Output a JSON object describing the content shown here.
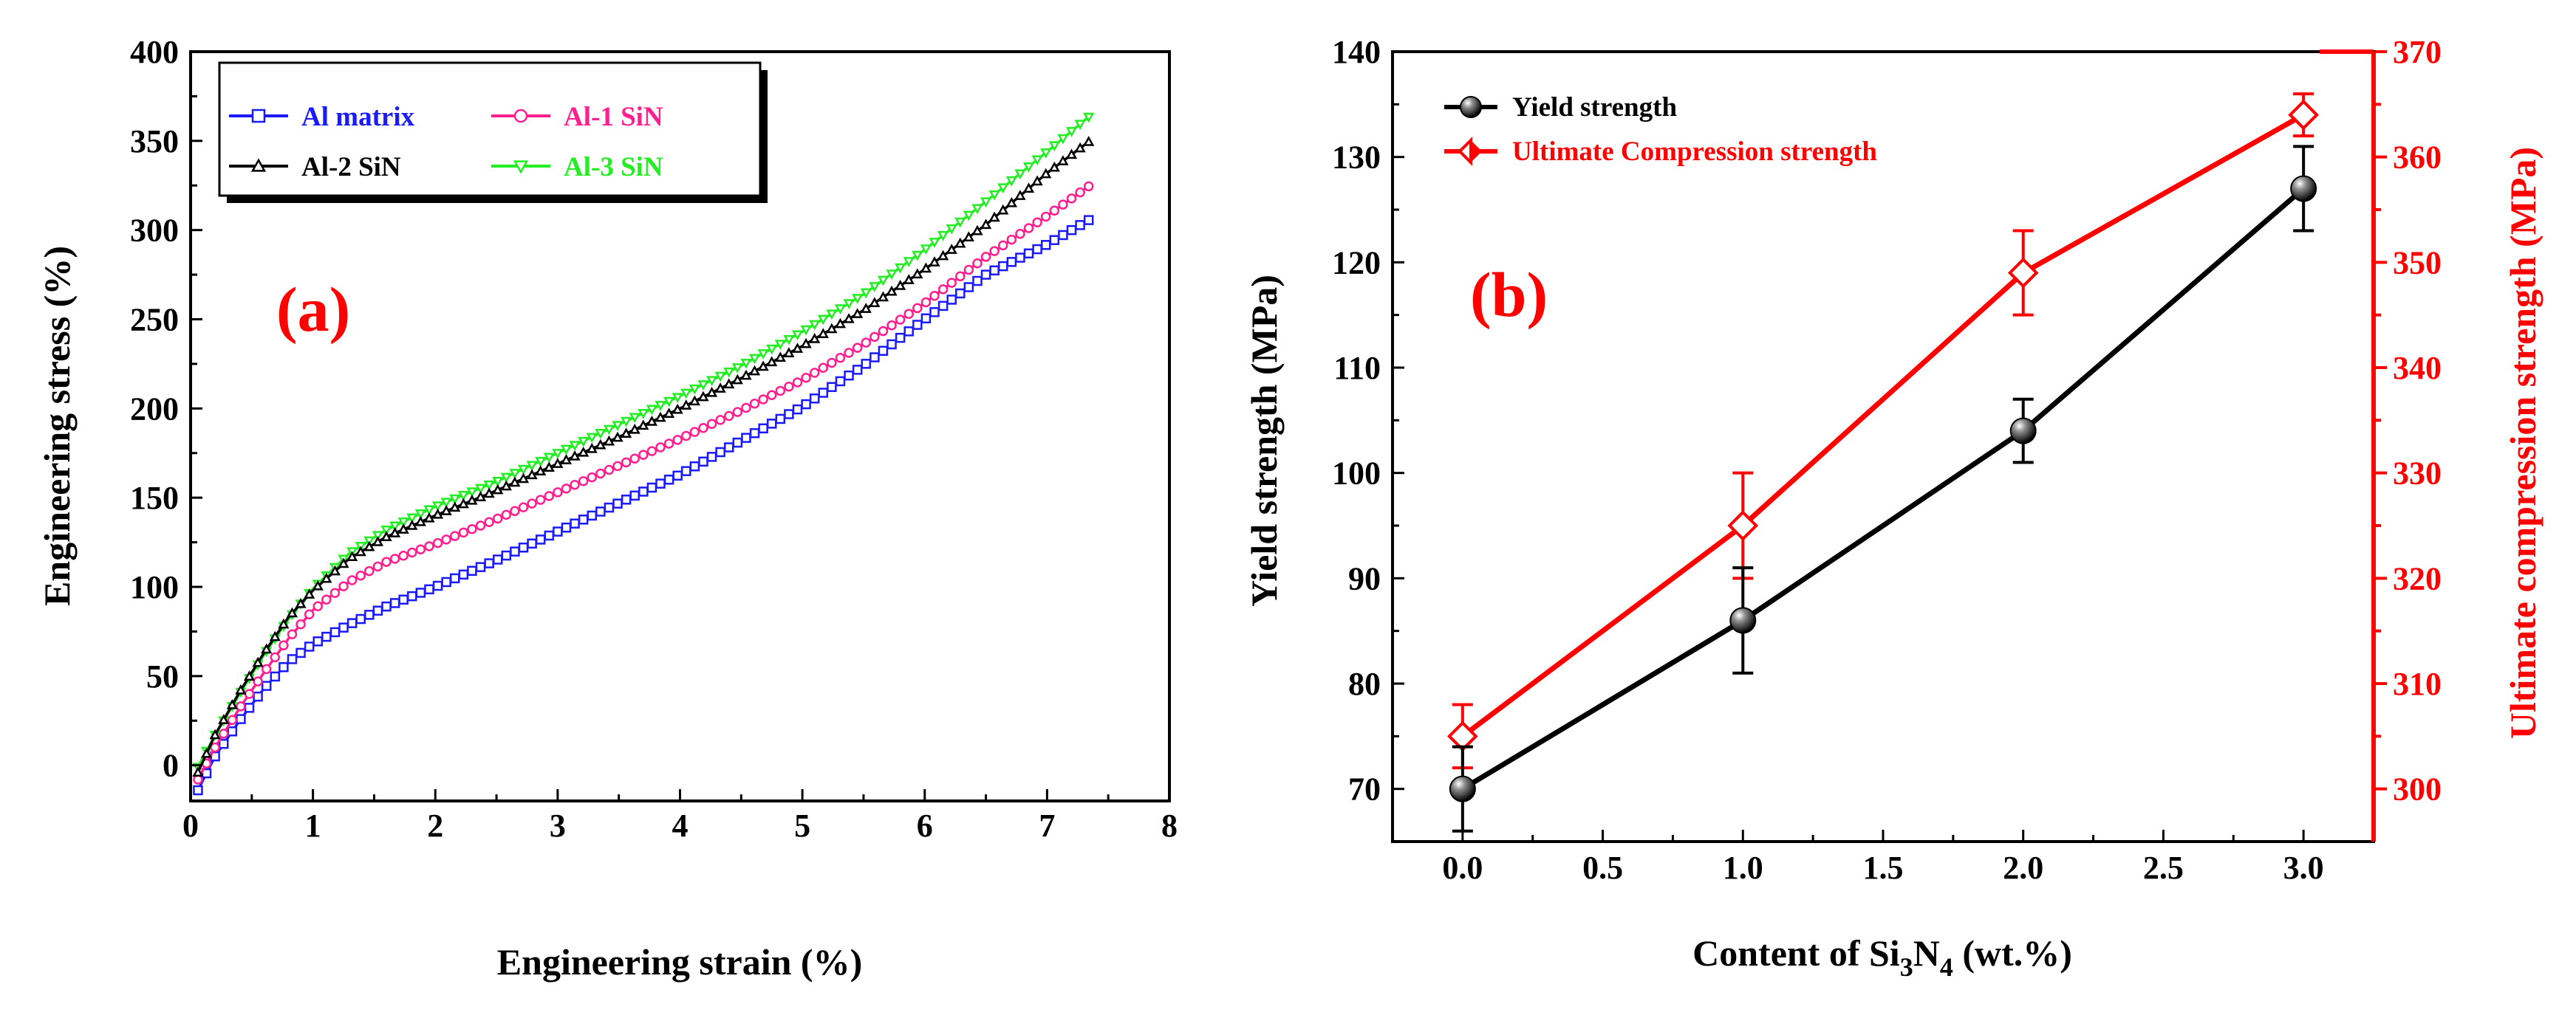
{
  "chart_data": [
    {
      "type": "line",
      "panel_label": "(a)",
      "xlabel": "Engineering strain (%)",
      "ylabel": "Engineering stress (%)",
      "xlim": [
        0,
        8
      ],
      "ylim": [
        -20,
        400
      ],
      "xticks": [
        "0",
        "1",
        "2",
        "3",
        "4",
        "5",
        "6",
        "7",
        "8"
      ],
      "yticks": [
        "0",
        "50",
        "100",
        "150",
        "200",
        "250",
        "300",
        "350",
        "400"
      ],
      "legend_position": "top-left",
      "series": [
        {
          "name": "Al matrix",
          "color": "#1a1aff",
          "marker": "square",
          "x": [
            0.06,
            0.2,
            0.4,
            0.6,
            0.8,
            1.0,
            1.3,
            1.6,
            2.0,
            2.5,
            3.0,
            3.5,
            4.0,
            4.5,
            5.0,
            5.5,
            6.0,
            6.5,
            7.0,
            7.35
          ],
          "y": [
            -14,
            5,
            25,
            43,
            58,
            68,
            79,
            89,
            100,
            115,
            131,
            147,
            163,
            182,
            201,
            224,
            250,
            275,
            292,
            306
          ]
        },
        {
          "name": "Al-1 SiN",
          "color": "#ff1f8f",
          "marker": "circle",
          "x": [
            0.06,
            0.2,
            0.4,
            0.6,
            0.8,
            1.0,
            1.3,
            1.6,
            2.0,
            2.5,
            3.0,
            3.5,
            4.0,
            4.5,
            5.0,
            5.5,
            6.0,
            6.5,
            7.0,
            7.35
          ],
          "y": [
            -8,
            10,
            32,
            52,
            71,
            87,
            103,
            114,
            124,
            138,
            153,
            168,
            183,
            199,
            216,
            236,
            259,
            285,
            308,
            325
          ]
        },
        {
          "name": "Al-2 SiN",
          "color": "#000000",
          "marker": "triangle-up",
          "x": [
            0.06,
            0.2,
            0.4,
            0.6,
            0.8,
            1.0,
            1.3,
            1.6,
            2.0,
            2.5,
            3.0,
            3.5,
            4.0,
            4.5,
            5.0,
            5.5,
            6.0,
            6.5,
            7.0,
            7.35
          ],
          "y": [
            -4,
            17,
            41,
            63,
            83,
            98,
            116,
            128,
            140,
            154,
            169,
            184,
            200,
            217,
            235,
            255,
            278,
            303,
            332,
            350
          ]
        },
        {
          "name": "Al-3 SiN",
          "color": "#22ee22",
          "marker": "triangle-down",
          "x": [
            0.06,
            0.2,
            0.4,
            0.6,
            0.8,
            1.0,
            1.3,
            1.6,
            2.0,
            2.5,
            3.0,
            3.5,
            4.0,
            4.5,
            5.0,
            5.5,
            6.0,
            6.5,
            7.0,
            7.35
          ],
          "y": [
            -1,
            17,
            40,
            62,
            82,
            99,
            119,
            132,
            145,
            159,
            175,
            191,
            207,
            224,
            243,
            264,
            289,
            316,
            344,
            364
          ]
        }
      ]
    },
    {
      "type": "line",
      "panel_label": "(b)",
      "xlabel": "Content of Si3N4 (wt.%)",
      "xlabel_parts": {
        "pre": "Content of Si",
        "s1": "3",
        "mid": "N",
        "s2": "4",
        "post": " (wt.%)"
      },
      "ylabel": "Yield strength (MPa)",
      "y2label": "Ultimate compression strength (MPa)",
      "xlim": [
        -0.25,
        3.25
      ],
      "ylim": [
        65,
        140
      ],
      "y2lim": [
        295,
        370
      ],
      "xticks": [
        "0.0",
        "0.5",
        "1.0",
        "1.5",
        "2.0",
        "2.5",
        "3.0"
      ],
      "yticks": [
        "70",
        "80",
        "90",
        "100",
        "110",
        "120",
        "130",
        "140"
      ],
      "y2ticks": [
        "300",
        "310",
        "320",
        "330",
        "340",
        "350",
        "360",
        "370"
      ],
      "legend_position": "top-left",
      "series": [
        {
          "name": "Yield strength",
          "axis": "left",
          "color": "#000000",
          "marker": "sphere",
          "x": [
            0,
            1,
            2,
            3
          ],
          "y": [
            70,
            86,
            104,
            127
          ],
          "err": [
            4,
            5,
            3,
            4
          ]
        },
        {
          "name": "Ultimate Compression strength",
          "axis": "right",
          "color": "#ff0000",
          "marker": "diamond",
          "x": [
            0,
            1,
            2,
            3
          ],
          "y": [
            305,
            325,
            349,
            364
          ],
          "err": [
            3,
            5,
            4,
            2
          ]
        }
      ]
    }
  ]
}
